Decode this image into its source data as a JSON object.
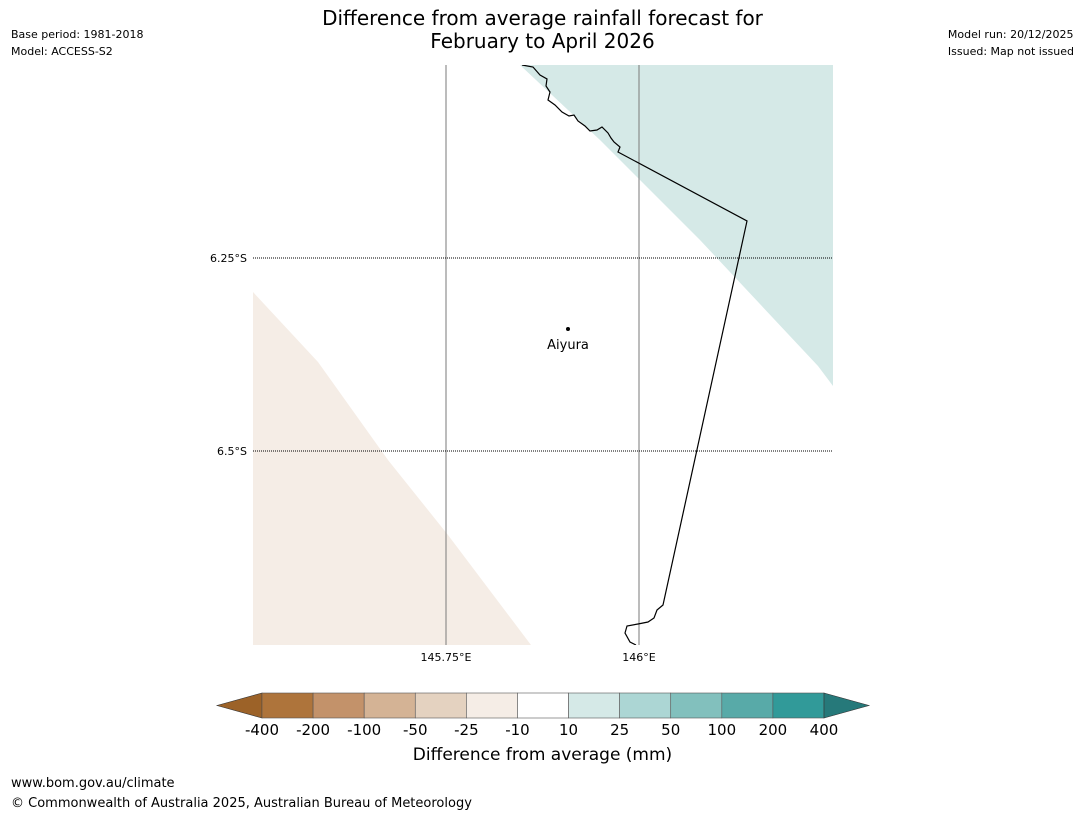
{
  "header": {
    "title_line1": "Difference from average rainfall forecast for",
    "title_line2": "February to April 2026",
    "base_period": "Base period: 1981-2018",
    "model": "Model: ACCESS-S2",
    "model_run": "Model run: 20/12/2025",
    "issued": "Issued: Map not issued"
  },
  "map": {
    "latitude_labels": [
      "6.25°S",
      "6.5°S"
    ],
    "longitude_labels": [
      "145.75°E",
      "146°E"
    ],
    "place": {
      "name": "Aiyura"
    },
    "colors": {
      "wet_shade": "#d5e9e7",
      "dry_shade": "#f5ede6",
      "coastline": "#000000"
    }
  },
  "colorbar": {
    "title": "Difference from average (mm)",
    "tick_labels": [
      "-400",
      "-200",
      "-100",
      "-50",
      "-25",
      "-10",
      "10",
      "25",
      "50",
      "100",
      "200",
      "400"
    ],
    "colors": [
      "#9c6228",
      "#ae743b",
      "#c3926a",
      "#d4b395",
      "#e4d2c0",
      "#f5ede6",
      "#ffffff",
      "#d5e9e7",
      "#acd6d4",
      "#82c0bd",
      "#58aaa8",
      "#319a99",
      "#26797a"
    ]
  },
  "footer": {
    "url": "www.bom.gov.au/climate",
    "copyright": "© Commonwealth of Australia 2025, Australian Bureau of Meteorology"
  }
}
